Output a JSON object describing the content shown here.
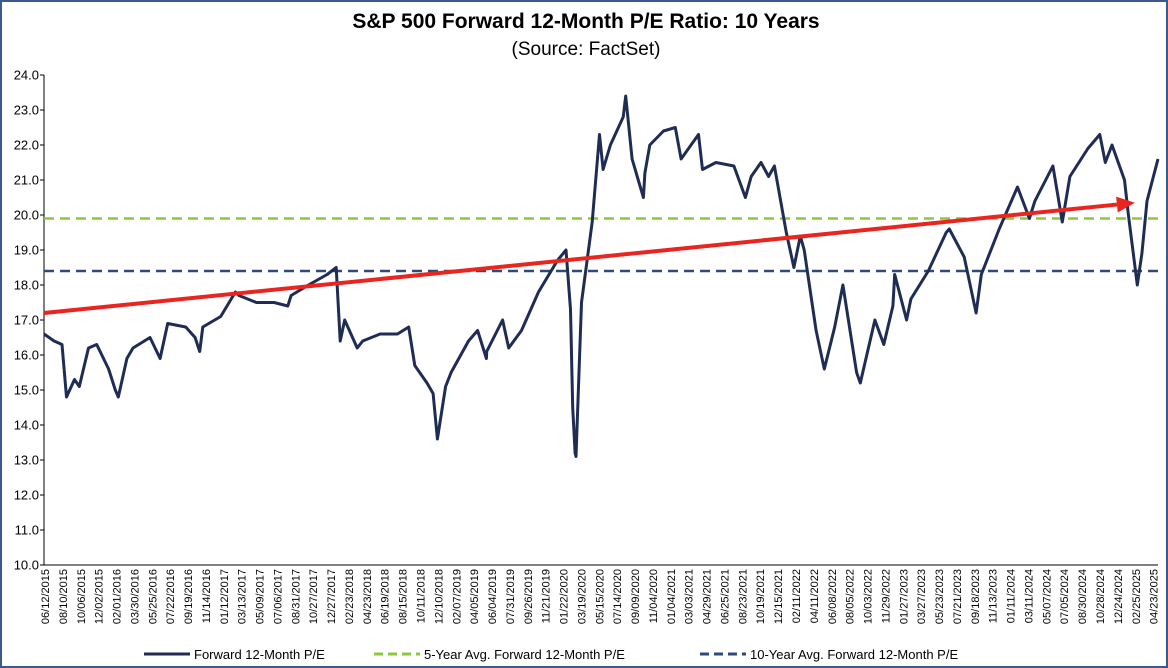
{
  "chart_data": {
    "type": "line",
    "title": "S&P 500 Forward 12-Month P/E Ratio: 10 Years",
    "subtitle": "(Source: FactSet)",
    "ylim": [
      10,
      24
    ],
    "yticks": [
      "10.0",
      "11.0",
      "12.0",
      "13.0",
      "14.0",
      "15.0",
      "16.0",
      "17.0",
      "18.0",
      "19.0",
      "20.0",
      "21.0",
      "22.0",
      "23.0",
      "24.0"
    ],
    "xlim": [
      "2015-06-12",
      "2025-06-15"
    ],
    "x_ticks": [
      "06/12/2015",
      "08/10/2015",
      "10/06/2015",
      "12/02/2015",
      "02/01/2016",
      "03/30/2016",
      "05/25/2016",
      "07/22/2016",
      "09/19/2016",
      "11/14/2016",
      "01/12/2017",
      "03/13/2017",
      "05/09/2017",
      "07/06/2017",
      "08/31/2017",
      "10/27/2017",
      "12/27/2017",
      "02/23/2018",
      "04/23/2018",
      "06/19/2018",
      "08/15/2018",
      "10/11/2018",
      "12/10/2018",
      "02/07/2019",
      "04/05/2019",
      "06/04/2019",
      "07/31/2019",
      "09/26/2019",
      "11/21/2019",
      "01/22/2020",
      "03/19/2020",
      "05/15/2020",
      "07/14/2020",
      "09/09/2020",
      "11/04/2020",
      "01/04/2021",
      "03/03/2021",
      "04/29/2021",
      "06/25/2021",
      "08/23/2021",
      "10/19/2021",
      "12/15/2021",
      "02/11/2022",
      "04/11/2022",
      "06/08/2022",
      "08/05/2022",
      "10/03/2022",
      "11/29/2022",
      "01/27/2023",
      "03/27/2023",
      "05/23/2023",
      "07/21/2023",
      "09/18/2023",
      "11/13/2023",
      "01/11/2024",
      "03/11/2024",
      "05/07/2024",
      "07/05/2024",
      "08/30/2024",
      "10/28/2024",
      "12/24/2024",
      "02/25/2025",
      "04/23/2025"
    ],
    "colors": {
      "pe": "#1f2d55",
      "avg5": "#8fc63f",
      "avg10": "#2e4a7a",
      "trend": "#e8251f",
      "border": "#3a5a8c"
    },
    "series": [
      {
        "name": "Forward 12-Month P/E",
        "style": "solid",
        "points": [
          [
            "2015-06-12",
            16.6
          ],
          [
            "2015-07-15",
            16.4
          ],
          [
            "2015-08-10",
            16.3
          ],
          [
            "2015-08-25",
            14.8
          ],
          [
            "2015-09-20",
            15.3
          ],
          [
            "2015-10-06",
            15.1
          ],
          [
            "2015-11-05",
            16.2
          ],
          [
            "2015-12-02",
            16.3
          ],
          [
            "2016-01-10",
            15.6
          ],
          [
            "2016-02-01",
            15.0
          ],
          [
            "2016-02-11",
            14.8
          ],
          [
            "2016-03-10",
            15.9
          ],
          [
            "2016-03-30",
            16.2
          ],
          [
            "2016-05-25",
            16.5
          ],
          [
            "2016-06-27",
            15.9
          ],
          [
            "2016-07-22",
            16.9
          ],
          [
            "2016-09-19",
            16.8
          ],
          [
            "2016-10-20",
            16.5
          ],
          [
            "2016-11-04",
            16.1
          ],
          [
            "2016-11-14",
            16.8
          ],
          [
            "2017-01-12",
            17.1
          ],
          [
            "2017-03-01",
            17.8
          ],
          [
            "2017-03-13",
            17.7
          ],
          [
            "2017-05-09",
            17.5
          ],
          [
            "2017-07-06",
            17.5
          ],
          [
            "2017-08-20",
            17.4
          ],
          [
            "2017-08-31",
            17.7
          ],
          [
            "2017-10-27",
            18.0
          ],
          [
            "2017-12-27",
            18.3
          ],
          [
            "2018-01-26",
            18.5
          ],
          [
            "2018-02-08",
            16.4
          ],
          [
            "2018-02-23",
            17.0
          ],
          [
            "2018-04-05",
            16.2
          ],
          [
            "2018-04-23",
            16.4
          ],
          [
            "2018-06-19",
            16.6
          ],
          [
            "2018-08-15",
            16.6
          ],
          [
            "2018-09-21",
            16.8
          ],
          [
            "2018-10-11",
            15.7
          ],
          [
            "2018-11-20",
            15.2
          ],
          [
            "2018-12-10",
            14.9
          ],
          [
            "2018-12-24",
            13.6
          ],
          [
            "2019-01-20",
            15.1
          ],
          [
            "2019-02-07",
            15.5
          ],
          [
            "2019-04-05",
            16.4
          ],
          [
            "2019-05-05",
            16.7
          ],
          [
            "2019-06-03",
            15.9
          ],
          [
            "2019-06-04",
            16.1
          ],
          [
            "2019-07-26",
            17.0
          ],
          [
            "2019-08-15",
            16.2
          ],
          [
            "2019-09-26",
            16.7
          ],
          [
            "2019-11-21",
            17.8
          ],
          [
            "2020-01-22",
            18.7
          ],
          [
            "2020-02-19",
            19.0
          ],
          [
            "2020-03-05",
            17.3
          ],
          [
            "2020-03-12",
            14.5
          ],
          [
            "2020-03-20",
            13.2
          ],
          [
            "2020-03-23",
            13.1
          ],
          [
            "2020-04-10",
            17.5
          ],
          [
            "2020-05-15",
            19.8
          ],
          [
            "2020-06-08",
            22.3
          ],
          [
            "2020-06-20",
            21.3
          ],
          [
            "2020-07-14",
            22.0
          ],
          [
            "2020-08-25",
            22.8
          ],
          [
            "2020-09-02",
            23.4
          ],
          [
            "2020-09-23",
            21.6
          ],
          [
            "2020-10-30",
            20.5
          ],
          [
            "2020-11-04",
            21.2
          ],
          [
            "2020-11-20",
            22.0
          ],
          [
            "2021-01-04",
            22.4
          ],
          [
            "2021-02-12",
            22.5
          ],
          [
            "2021-03-03",
            21.6
          ],
          [
            "2021-04-29",
            22.3
          ],
          [
            "2021-05-12",
            21.3
          ],
          [
            "2021-06-25",
            21.5
          ],
          [
            "2021-08-23",
            21.4
          ],
          [
            "2021-09-30",
            20.5
          ],
          [
            "2021-10-19",
            21.1
          ],
          [
            "2021-11-20",
            21.5
          ],
          [
            "2021-12-15",
            21.1
          ],
          [
            "2022-01-03",
            21.4
          ],
          [
            "2022-02-11",
            19.5
          ],
          [
            "2022-03-08",
            18.5
          ],
          [
            "2022-03-29",
            19.4
          ],
          [
            "2022-04-11",
            19.0
          ],
          [
            "2022-05-20",
            16.7
          ],
          [
            "2022-06-16",
            15.6
          ],
          [
            "2022-07-20",
            16.8
          ],
          [
            "2022-08-16",
            18.0
          ],
          [
            "2022-09-30",
            15.5
          ],
          [
            "2022-10-12",
            15.2
          ],
          [
            "2022-11-29",
            17.0
          ],
          [
            "2022-12-28",
            16.3
          ],
          [
            "2023-01-27",
            17.4
          ],
          [
            "2023-02-02",
            18.3
          ],
          [
            "2023-03-13",
            17.0
          ],
          [
            "2023-03-27",
            17.6
          ],
          [
            "2023-05-23",
            18.4
          ],
          [
            "2023-07-21",
            19.5
          ],
          [
            "2023-07-31",
            19.6
          ],
          [
            "2023-09-18",
            18.8
          ],
          [
            "2023-10-27",
            17.2
          ],
          [
            "2023-11-13",
            18.3
          ],
          [
            "2024-01-11",
            19.6
          ],
          [
            "2024-03-11",
            20.8
          ],
          [
            "2024-04-19",
            19.9
          ],
          [
            "2024-05-07",
            20.4
          ],
          [
            "2024-07-05",
            21.4
          ],
          [
            "2024-08-05",
            19.8
          ],
          [
            "2024-08-30",
            21.1
          ],
          [
            "2024-10-28",
            21.9
          ],
          [
            "2024-12-06",
            22.3
          ],
          [
            "2024-12-24",
            21.5
          ],
          [
            "2025-01-15",
            22.0
          ],
          [
            "2025-02-25",
            21.0
          ],
          [
            "2025-03-10",
            20.0
          ],
          [
            "2025-04-08",
            18.0
          ],
          [
            "2025-04-23",
            18.9
          ],
          [
            "2025-05-10",
            20.4
          ],
          [
            "2025-06-15",
            21.6
          ]
        ]
      },
      {
        "name": "5-Year Avg. Forward 12-Month P/E",
        "style": "dashed",
        "value": 19.9
      },
      {
        "name": "10-Year Avg. Forward 12-Month P/E",
        "style": "dashed",
        "value": 18.4
      }
    ],
    "trend_arrow": {
      "from": [
        "2015-06-12",
        17.2
      ],
      "to": [
        "2025-03-31",
        20.35
      ]
    },
    "grid": false,
    "legend_position": "bottom"
  }
}
